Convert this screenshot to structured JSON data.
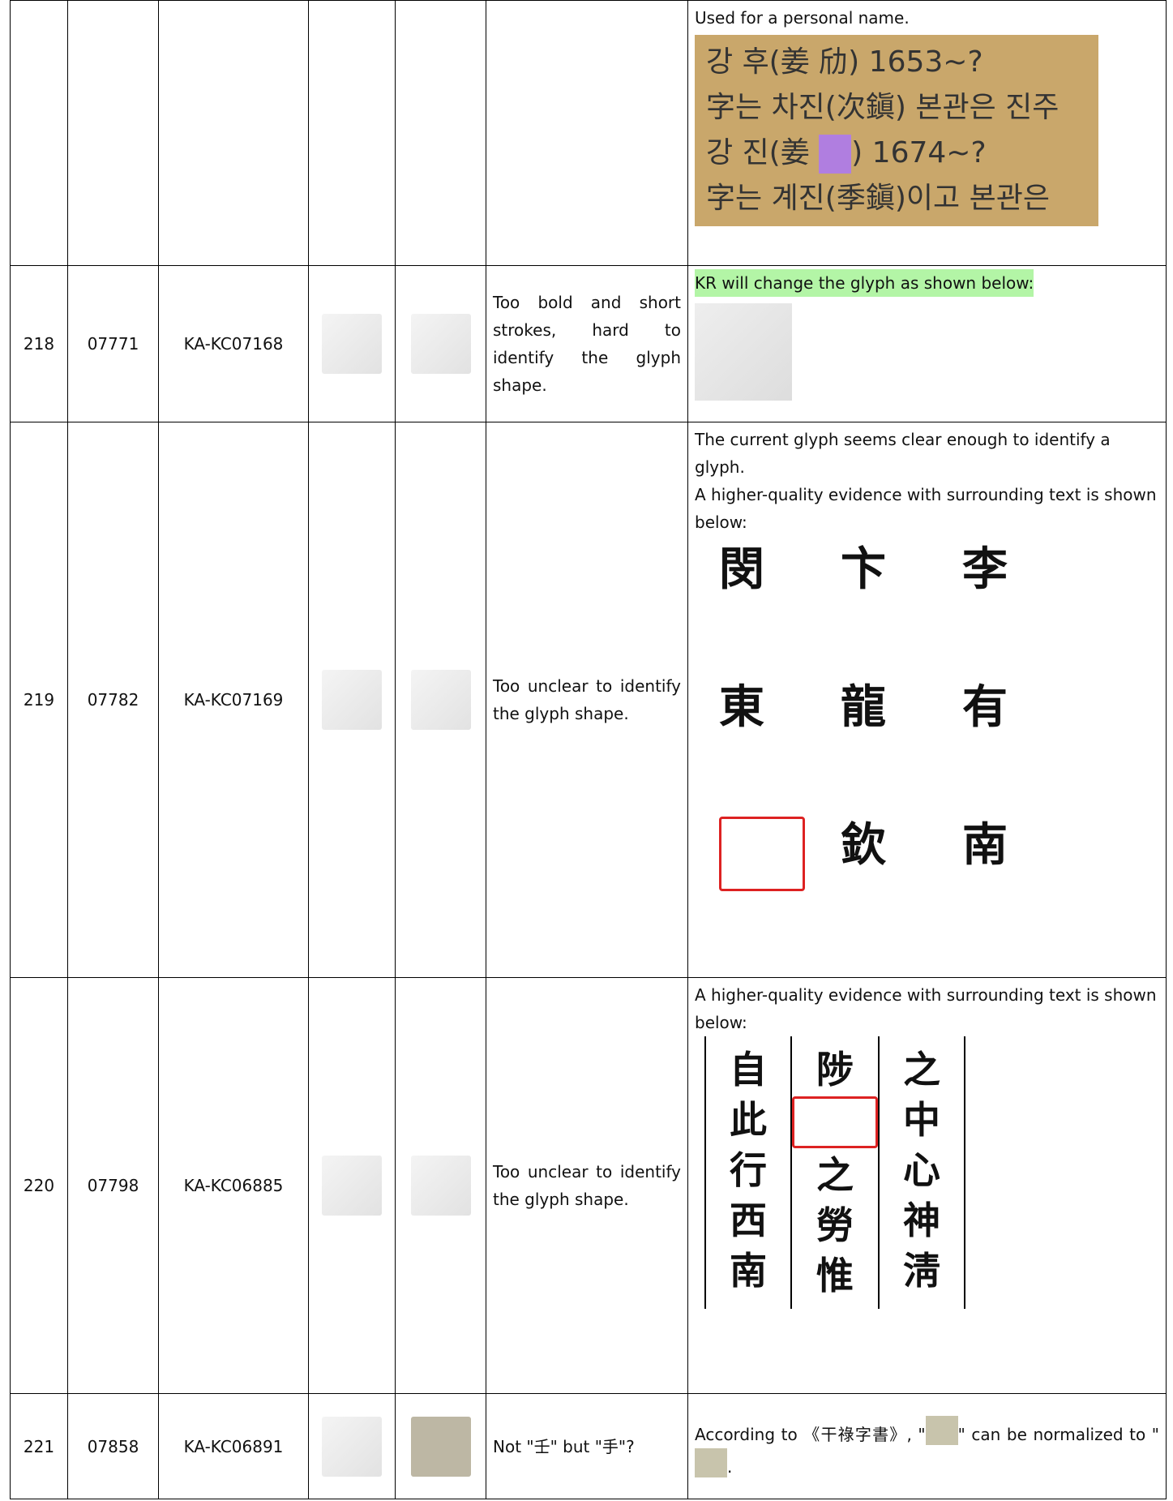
{
  "table": {
    "rows": [
      {
        "response": [
          "Used for a personal name."
        ],
        "scan_lines": [
          [
            "강 후(姜 劤) 1653~?"
          ],
          [
            "字는 차진(次鎭) 본관은 진주"
          ],
          [
            "강 진(姜 ",
            ") 1674~?"
          ],
          [
            "字는 계진(季鎭)이고 본관은"
          ]
        ]
      },
      {
        "number": "218",
        "code": "07771",
        "source_id": "KA-KC07168",
        "comment": "Too bold and short strokes, hard to identify the glyph shape.",
        "response": [
          "KR will change the glyph as shown below:"
        ],
        "highlight": true
      },
      {
        "number": "219",
        "code": "07782",
        "source_id": "KA-KC07169",
        "comment": "Too unclear to identify the glyph shape.",
        "response": [
          "The current glyph seems clear enough to identify a glyph.",
          "A higher-quality evidence with surrounding text is shown below:"
        ],
        "evidence_grid": [
          [
            "閔",
            "卞",
            "李"
          ],
          [
            "東",
            "龍",
            "有"
          ],
          [
            null,
            "欽",
            "南"
          ]
        ]
      },
      {
        "number": "220",
        "code": "07798",
        "source_id": "KA-KC06885",
        "comment": "Too unclear to identify the glyph shape.",
        "response": [
          "A higher-quality evidence with surrounding text is shown below:"
        ],
        "evidence_columns": [
          [
            "自",
            "此",
            "行",
            "西",
            "南"
          ],
          [
            "陟",
            null,
            "之",
            "勞",
            "惟"
          ],
          [
            "之",
            "中",
            "心",
            "神",
            "淸"
          ]
        ]
      },
      {
        "number": "221",
        "code": "07858",
        "source_id": "KA-KC06891",
        "comment": "Not \"壬\" but \"手\"?",
        "response_parts": [
          "According to 《干祿字書》, \"",
          "\" can be normalized to \"",
          "."
        ]
      }
    ]
  }
}
